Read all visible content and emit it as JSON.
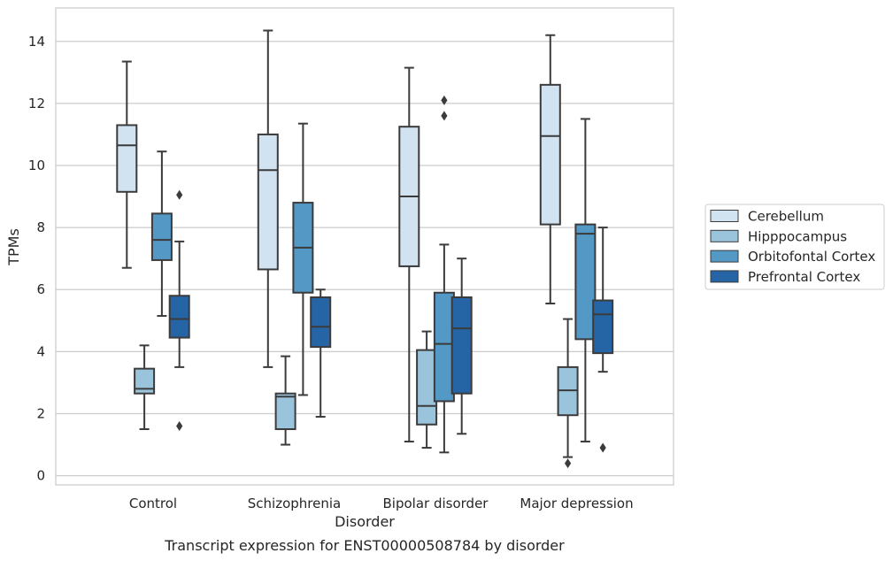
{
  "chart_data": {
    "type": "boxplot",
    "caption": "Transcript expression for ENST00000508784 by disorder",
    "xlabel": "Disorder",
    "ylabel": "TPMs",
    "ylim": [
      -0.3,
      15.1
    ],
    "yticks": [
      0,
      2,
      4,
      6,
      8,
      10,
      12,
      14
    ],
    "grid": "horizontal",
    "legend_placement": "right",
    "categories": [
      "Control",
      "Schizophrenia",
      "Bipolar disorder",
      "Major depression"
    ],
    "series": [
      {
        "name": "Cerebellum",
        "color": "#d1e2f1",
        "boxes": [
          {
            "whislo": 6.7,
            "q1": 9.15,
            "med": 10.65,
            "q3": 11.3,
            "whishi": 13.35,
            "fliers": []
          },
          {
            "whislo": 3.5,
            "q1": 6.65,
            "med": 9.85,
            "q3": 11.0,
            "whishi": 14.35,
            "fliers": []
          },
          {
            "whislo": 1.1,
            "q1": 6.75,
            "med": 9.0,
            "q3": 11.25,
            "whishi": 13.15,
            "fliers": []
          },
          {
            "whislo": 5.55,
            "q1": 8.1,
            "med": 10.95,
            "q3": 12.6,
            "whishi": 14.2,
            "fliers": []
          }
        ]
      },
      {
        "name": "Hipppocampus",
        "color": "#9ac3dc",
        "boxes": [
          {
            "whislo": 1.5,
            "q1": 2.65,
            "med": 2.8,
            "q3": 3.45,
            "whishi": 4.2,
            "fliers": []
          },
          {
            "whislo": 1.0,
            "q1": 1.5,
            "med": 2.55,
            "q3": 2.65,
            "whishi": 3.85,
            "fliers": []
          },
          {
            "whislo": 0.9,
            "q1": 1.65,
            "med": 2.25,
            "q3": 4.05,
            "whishi": 4.65,
            "fliers": []
          },
          {
            "whislo": 0.6,
            "q1": 1.95,
            "med": 2.75,
            "q3": 3.5,
            "whishi": 5.05,
            "fliers": [
              0.4
            ]
          }
        ]
      },
      {
        "name": "Orbitofontal Cortex",
        "color": "#5498c6",
        "boxes": [
          {
            "whislo": 5.15,
            "q1": 6.95,
            "med": 7.6,
            "q3": 8.45,
            "whishi": 10.45,
            "fliers": []
          },
          {
            "whislo": 2.6,
            "q1": 5.9,
            "med": 7.35,
            "q3": 8.8,
            "whishi": 11.35,
            "fliers": []
          },
          {
            "whislo": 0.75,
            "q1": 2.4,
            "med": 4.25,
            "q3": 5.9,
            "whishi": 7.45,
            "fliers": [
              11.6,
              12.1
            ]
          },
          {
            "whislo": 1.1,
            "q1": 4.4,
            "med": 7.8,
            "q3": 8.1,
            "whishi": 11.5,
            "fliers": []
          }
        ]
      },
      {
        "name": "Prefrontal Cortex",
        "color": "#2565a5",
        "boxes": [
          {
            "whislo": 3.5,
            "q1": 4.45,
            "med": 5.05,
            "q3": 5.8,
            "whishi": 7.55,
            "fliers": [
              1.6,
              9.05
            ]
          },
          {
            "whislo": 1.9,
            "q1": 4.15,
            "med": 4.8,
            "q3": 5.75,
            "whishi": 6.0,
            "fliers": []
          },
          {
            "whislo": 1.35,
            "q1": 2.65,
            "med": 4.75,
            "q3": 5.75,
            "whishi": 7.0,
            "fliers": []
          },
          {
            "whislo": 3.35,
            "q1": 3.95,
            "med": 5.2,
            "q3": 5.65,
            "whishi": 8.0,
            "fliers": [
              0.9
            ]
          }
        ]
      }
    ]
  }
}
